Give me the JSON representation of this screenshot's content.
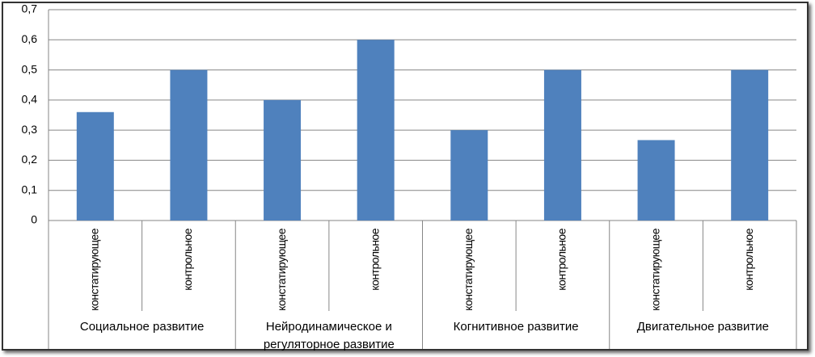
{
  "chart_data": {
    "type": "bar",
    "categories": [
      "констатирующее",
      "контрольное",
      "констатирующее",
      "контрольное",
      "констатирующее",
      "контрольное",
      "констатирующее",
      "контрольное"
    ],
    "groups": [
      "Социальное развитие",
      "Нейродинамическое и регуляторное развитие",
      "Когнитивное развитие",
      "Двигательное развитие"
    ],
    "values": [
      0.36,
      0.5,
      0.4,
      0.6,
      0.3,
      0.5,
      0.267,
      0.5
    ],
    "color": "#4f81bd",
    "ylim": [
      0,
      0.7
    ],
    "yticks": [
      0,
      {
        "value": 0.1,
        "label": "0,1"
      },
      {
        "value": 0.2,
        "label": "0,2"
      },
      {
        "value": 0.3,
        "label": "0,3"
      },
      {
        "value": 0.4,
        "label": "0,4"
      },
      {
        "value": 0.5,
        "label": "0,5"
      },
      {
        "value": 0.6,
        "label": "0,6"
      },
      {
        "value": 0.7,
        "label": "0,7"
      }
    ],
    "grid": true
  }
}
